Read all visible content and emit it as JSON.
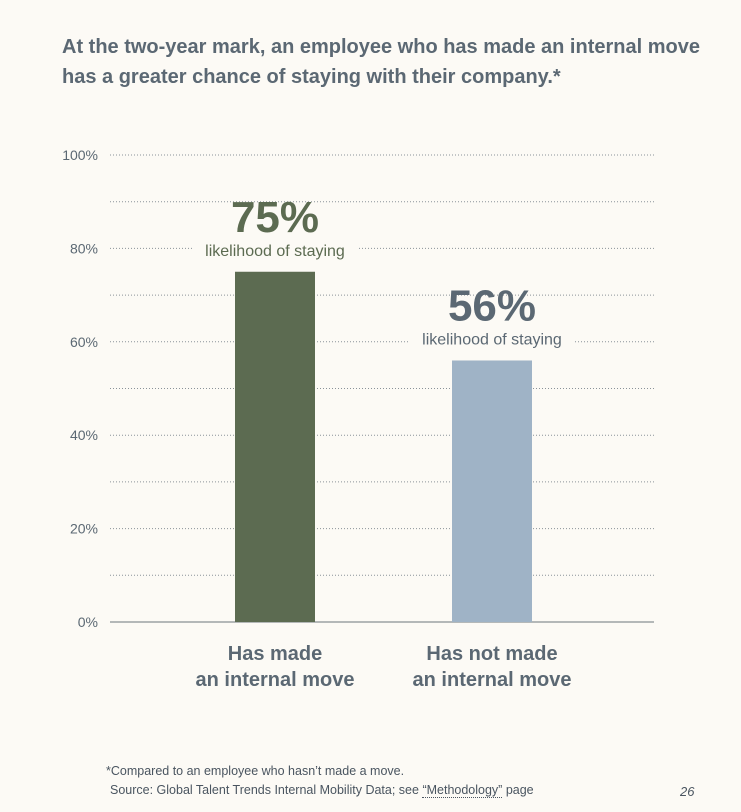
{
  "title": "At the two-year mark, an employee who has made an internal move has a greater chance of staying with their company.*",
  "chart_data": {
    "type": "bar",
    "categories": [
      "Has made\nan internal move",
      "Has not made\nan internal move"
    ],
    "values": [
      75,
      56
    ],
    "value_labels": [
      "75%",
      "56%"
    ],
    "value_sublabel": "likelihood of staying",
    "ylim": [
      0,
      100
    ],
    "yticks": [
      0,
      20,
      40,
      60,
      80,
      100
    ],
    "ytick_labels": [
      "0%",
      "20%",
      "40%",
      "60%",
      "80%",
      "100%"
    ],
    "minor_gridlines": [
      10,
      30,
      50,
      70,
      90
    ],
    "grid": true,
    "colors": [
      "#5c6b51",
      "#9fb3c6"
    ],
    "value_label_colors": [
      "#5c6b51",
      "#5b6873"
    ],
    "category_label_color": "#5b6873",
    "axis_label_color": "#5b6873"
  },
  "footnote": {
    "asterisk_note": "*Compared to an employee who hasn’t made a move.",
    "source_prefix": "Source: Global Talent Trends Internal Mobility Data; see ",
    "source_link": "“Methodology”",
    "source_suffix": " page"
  },
  "page_number": "26"
}
